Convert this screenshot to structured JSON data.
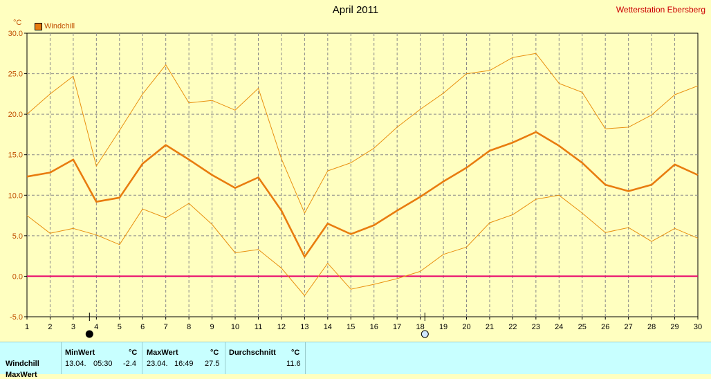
{
  "header": {
    "title": "April 2011",
    "station": "Wetterstation Ebersberg",
    "unit": "°C",
    "legend_label": "Windchill"
  },
  "colors": {
    "background": "#ffffc0",
    "plot_background": "#ffffc0",
    "main_line": "#e87c0f",
    "band_line": "#e8900f",
    "zero_line": "#e8006a",
    "grid": "#888888",
    "stats_background": "#c8ffff"
  },
  "chart_data": {
    "type": "line",
    "title": "April 2011",
    "ylabel": "°C",
    "x": [
      1,
      2,
      3,
      4,
      5,
      6,
      7,
      8,
      9,
      10,
      11,
      12,
      13,
      14,
      15,
      16,
      17,
      18,
      19,
      20,
      21,
      22,
      23,
      24,
      25,
      26,
      27,
      28,
      29,
      30
    ],
    "ylim": [
      -5,
      30
    ],
    "yticks": [
      "-5.0",
      "0.0",
      "5.0",
      "10.0",
      "15.0",
      "20.0",
      "25.0",
      "30.0"
    ],
    "xticks": [
      "1",
      "2",
      "3",
      "4",
      "5",
      "6",
      "7",
      "8",
      "9",
      "10",
      "11",
      "12",
      "13",
      "14",
      "15",
      "16",
      "17",
      "18",
      "19",
      "20",
      "21",
      "22",
      "23",
      "24",
      "25",
      "26",
      "27",
      "28",
      "29",
      "30"
    ],
    "grid": true,
    "legend_position": "top-left",
    "series": [
      {
        "name": "Windchill",
        "role": "average",
        "values": [
          12.3,
          12.8,
          14.4,
          9.2,
          9.7,
          13.9,
          16.2,
          14.4,
          12.5,
          10.9,
          12.2,
          8.1,
          2.4,
          6.5,
          5.2,
          6.3,
          8.1,
          9.8,
          11.7,
          13.4,
          15.5,
          16.5,
          17.8,
          16.1,
          14.0,
          11.3,
          10.5,
          11.3,
          13.8,
          12.5
        ]
      },
      {
        "role": "max",
        "values": [
          20.0,
          22.5,
          24.7,
          13.6,
          18.0,
          22.5,
          26.1,
          21.4,
          21.7,
          20.5,
          23.2,
          14.5,
          7.8,
          13.0,
          14.0,
          15.8,
          18.4,
          20.6,
          22.6,
          25.0,
          25.4,
          27.0,
          27.5,
          23.8,
          22.7,
          18.2,
          18.4,
          19.9,
          22.4,
          23.5
        ]
      },
      {
        "role": "min",
        "values": [
          7.5,
          5.3,
          5.9,
          5.1,
          3.9,
          8.3,
          7.2,
          9.0,
          6.4,
          2.9,
          3.3,
          1.0,
          -2.4,
          1.6,
          -1.6,
          -1.0,
          -0.3,
          0.6,
          2.7,
          3.6,
          6.6,
          7.6,
          9.5,
          10.0,
          7.8,
          5.4,
          6.0,
          4.3,
          5.9,
          4.7
        ]
      }
    ],
    "reference_line": {
      "y": 0
    },
    "moon_phases": [
      {
        "x": 3.7,
        "phase": "new moon"
      },
      {
        "x": 18.2,
        "phase": "full moon"
      }
    ]
  },
  "stats": {
    "row_label": "Windchill",
    "row2_label": "MaxWert",
    "min_header": "MinWert",
    "max_header": "MaxWert",
    "avg_header": "Durchschnitt",
    "unit_header": "°C",
    "min_date": "13.04.",
    "min_time": "05:30",
    "min_value": "-2.4",
    "max_date": "23.04.",
    "max_time": "16:49",
    "max_value": "27.5",
    "avg_value": "11.6"
  }
}
